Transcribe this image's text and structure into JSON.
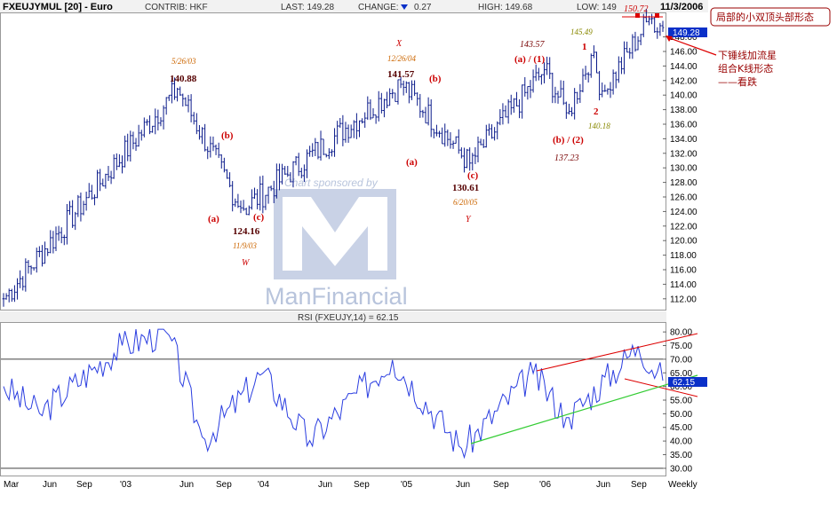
{
  "header": {
    "symbol": "FXEUJYMUL [20] - Euro",
    "contrib": "CONTRIB: HKF",
    "last": "LAST: 149.28",
    "change_label": "CHANGE:",
    "change_value": "0.27",
    "high": "HIGH: 149.68",
    "low": "LOW: 149",
    "date": "11/3/2006"
  },
  "watermark": {
    "line1": "Chart sponsored by",
    "line2": "ManFinancial"
  },
  "annotation_box": "局部的小双顶头部形态",
  "annotation_note": [
    "下锤线加流星",
    "组合K线形态",
    "——看跌"
  ],
  "colors": {
    "price": "#0a1a8a",
    "rsi": "#2a3de0",
    "red": "#cc0000",
    "green": "#33cc33",
    "current": "#0a30c8"
  },
  "price_panel": {
    "y_ticks": [
      "112.00",
      "114.00",
      "116.00",
      "118.00",
      "120.00",
      "122.00",
      "124.00",
      "126.00",
      "128.00",
      "130.00",
      "132.00",
      "134.00",
      "136.00",
      "138.00",
      "140.00",
      "142.00",
      "144.00",
      "146.00",
      "148.00"
    ],
    "current_label": "149.28",
    "top_label": "150.72"
  },
  "rsi_panel": {
    "title": "RSI (FXEUJY,14) = 62.15",
    "y_ticks": [
      "30.00",
      "35.00",
      "40.00",
      "45.00",
      "50.00",
      "55.00",
      "60.00",
      "65.00",
      "70.00",
      "75.00",
      "80.00"
    ],
    "current_label": "62.15"
  },
  "x_axis": [
    "Mar",
    "Jun",
    "Sep",
    "'03",
    "Jun",
    "Sep",
    "'04",
    "Jun",
    "Sep",
    "'05",
    "Jun",
    "Sep",
    "'06",
    "Jun",
    "Sep",
    "Weekly"
  ],
  "annotations": {
    "d1": "5/26/03",
    "p1": "140.88",
    "a1": "(a)",
    "c1": "(c)",
    "b1": "(b)",
    "p2": "124.16",
    "d2": "11/9/03",
    "w": "W",
    "x": "X",
    "d3": "12/26/04",
    "p3": "141.57",
    "a2": "(a)",
    "b2": "(b)",
    "c2": "(c)",
    "p4": "130.61",
    "d4": "6/20/05",
    "y": "Y",
    "p5": "143.57",
    "a3": "(a) / (1)",
    "p6": "145.49",
    "one": "1",
    "b3": "(b) / (2)",
    "p7": "137.23",
    "two": "2",
    "p8": "140.18"
  },
  "chart_data": [
    {
      "type": "candlestick",
      "title": "FXEUJYMUL [20] - Euro",
      "frequency": "Weekly",
      "x_range": [
        "2002-03",
        "2006-11-03"
      ],
      "ylim": [
        111,
        151
      ],
      "key_points": [
        {
          "date": "2002-03",
          "value": 112.0
        },
        {
          "date": "2003-05-26",
          "value": 140.88
        },
        {
          "date": "2003-11-09",
          "value": 124.16
        },
        {
          "date": "2004-12-26",
          "value": 141.57
        },
        {
          "date": "2005-06-20",
          "value": 130.61
        },
        {
          "date": "2006-01",
          "value": 143.57
        },
        {
          "date": "2006-03",
          "value": 137.23
        },
        {
          "date": "2006-05",
          "value": 145.49
        },
        {
          "date": "2006-06",
          "value": 140.18
        },
        {
          "date": "2006-10",
          "value": 150.72
        },
        {
          "date": "2006-11-03",
          "value": 149.28
        }
      ]
    },
    {
      "type": "line",
      "title": "RSI (FXEUJY,14) = 62.15",
      "ylim": [
        28,
        82
      ],
      "reference_line": 70,
      "key_points": [
        {
          "date": "2002-03",
          "value": 60
        },
        {
          "date": "2002-06",
          "value": 50
        },
        {
          "date": "2003-01",
          "value": 75
        },
        {
          "date": "2003-05",
          "value": 80
        },
        {
          "date": "2003-08",
          "value": 40
        },
        {
          "date": "2004-01",
          "value": 65
        },
        {
          "date": "2004-05",
          "value": 40
        },
        {
          "date": "2004-12",
          "value": 70
        },
        {
          "date": "2005-06",
          "value": 37
        },
        {
          "date": "2005-12",
          "value": 65
        },
        {
          "date": "2006-03",
          "value": 48
        },
        {
          "date": "2006-09",
          "value": 75
        },
        {
          "date": "2006-11-03",
          "value": 62.15
        }
      ]
    }
  ]
}
